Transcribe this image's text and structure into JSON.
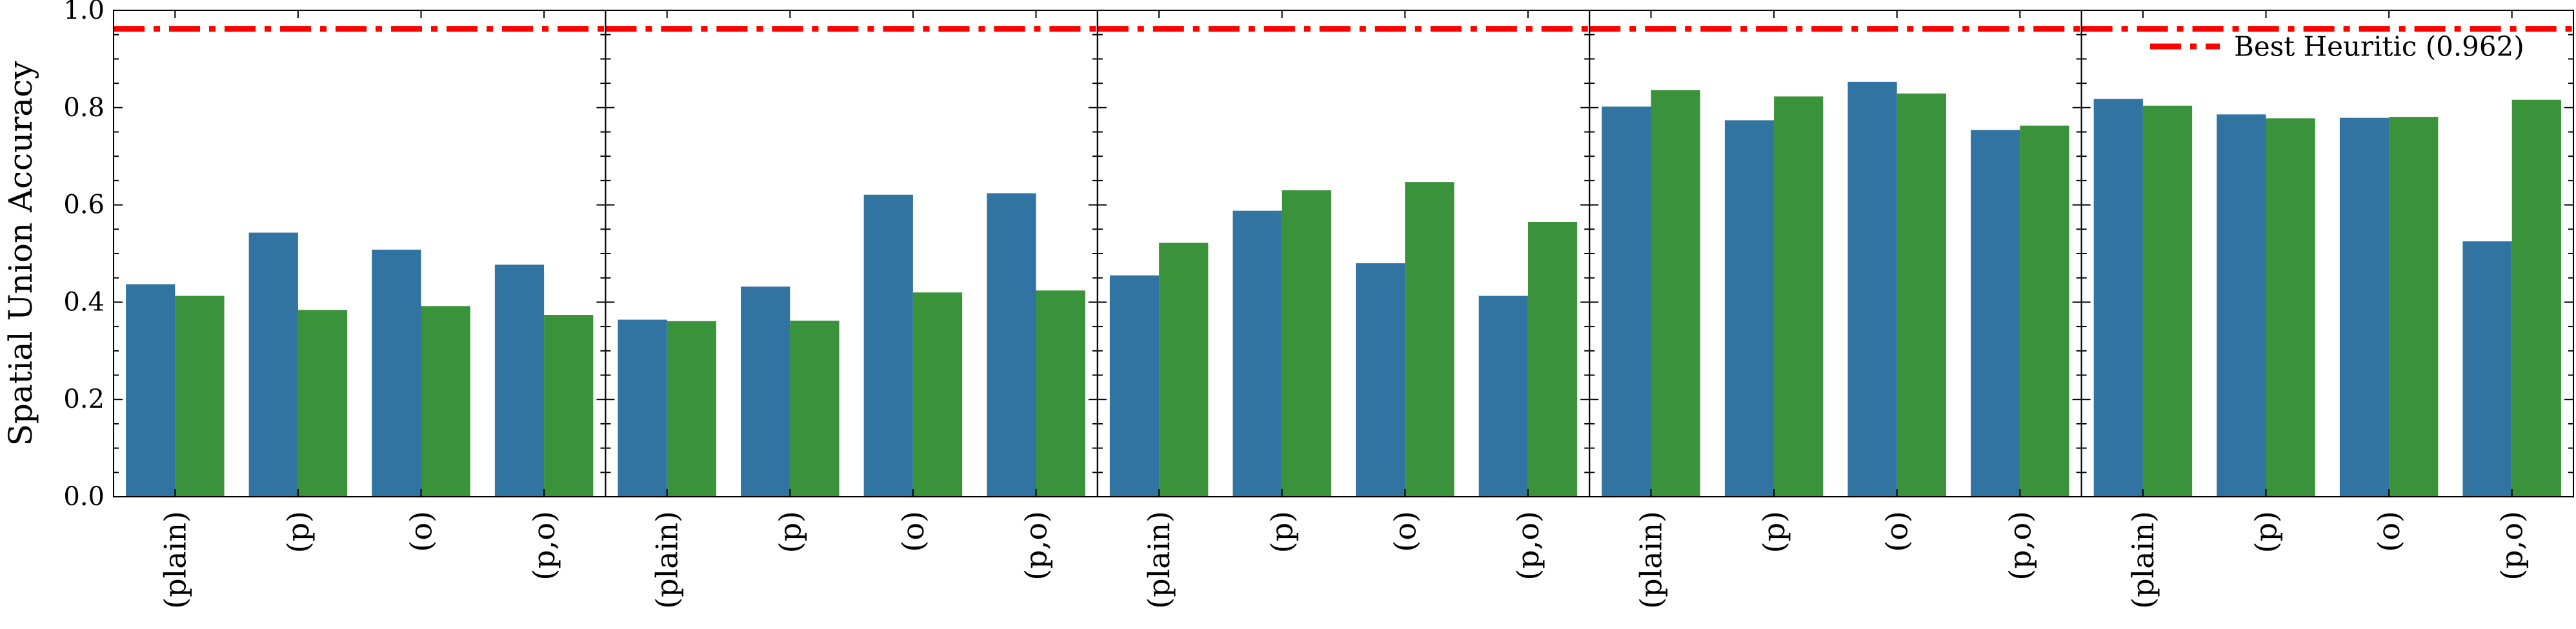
{
  "chart_data": {
    "type": "bar",
    "ylabel": "Spatial Union Accuracy",
    "ylim": [
      0.0,
      1.0
    ],
    "yticks": [
      "0.0",
      "0.2",
      "0.4",
      "0.6",
      "0.8",
      "1.0"
    ],
    "categories": [
      "(plain)",
      "(p)",
      "(o)",
      "(p,o)"
    ],
    "series_colors": [
      "#3274a1",
      "#3a923a"
    ],
    "grid": false,
    "legend": {
      "position": "top-right",
      "entries": [
        {
          "label": "Best Heuritic (0.962)",
          "color": "#ff0000",
          "style": "dash-dot"
        }
      ]
    },
    "reference_line": {
      "value": 0.962,
      "color": "#ff0000",
      "style": "dash-dot"
    },
    "panels": [
      {
        "values": [
          [
            0.437,
            0.413
          ],
          [
            0.543,
            0.384
          ],
          [
            0.508,
            0.392
          ],
          [
            0.477,
            0.374
          ]
        ]
      },
      {
        "values": [
          [
            0.364,
            0.361
          ],
          [
            0.432,
            0.362
          ],
          [
            0.621,
            0.42
          ],
          [
            0.624,
            0.424
          ]
        ]
      },
      {
        "values": [
          [
            0.455,
            0.522
          ],
          [
            0.588,
            0.63
          ],
          [
            0.48,
            0.647
          ],
          [
            0.413,
            0.565
          ]
        ]
      },
      {
        "values": [
          [
            0.802,
            0.836
          ],
          [
            0.774,
            0.823
          ],
          [
            0.853,
            0.829
          ],
          [
            0.754,
            0.763
          ]
        ]
      },
      {
        "values": [
          [
            0.818,
            0.804
          ],
          [
            0.786,
            0.778
          ],
          [
            0.779,
            0.781
          ],
          [
            0.525,
            0.816
          ]
        ]
      }
    ]
  }
}
